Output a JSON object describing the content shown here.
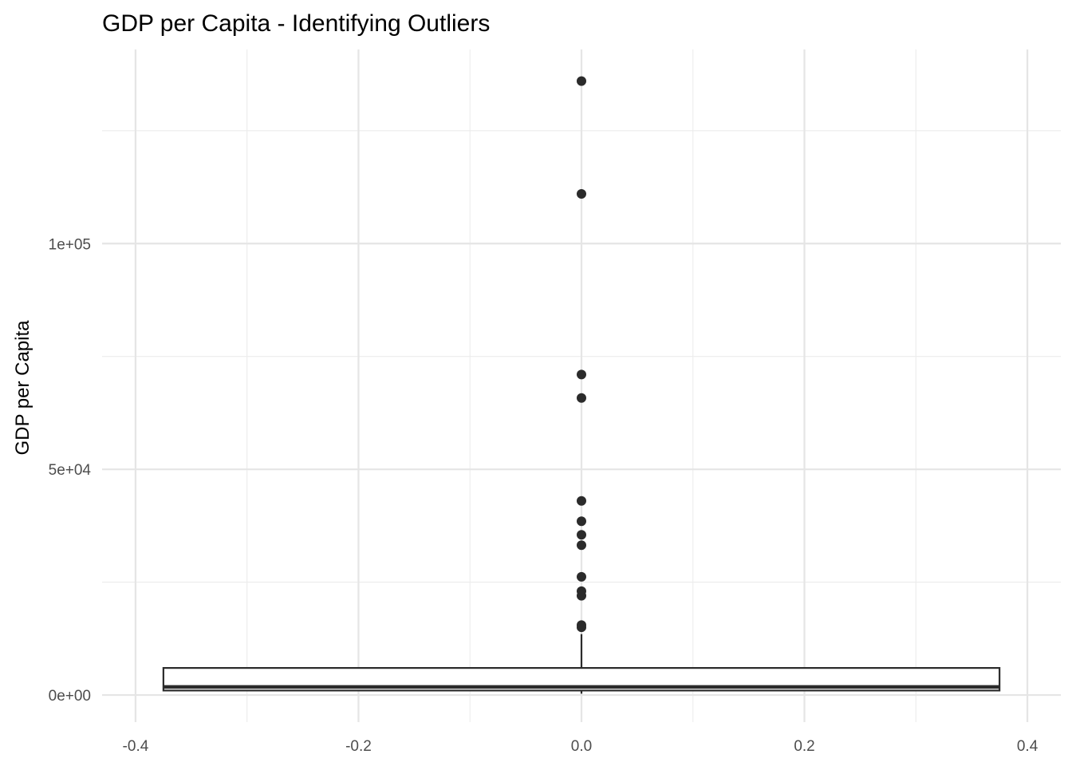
{
  "chart_data": {
    "type": "box",
    "title": "GDP per Capita - Identifying Outliers",
    "xlabel": "",
    "ylabel": "GDP per Capita",
    "x_tick_labels": [
      "-0.4",
      "-0.2",
      "0.0",
      "0.2",
      "0.4"
    ],
    "x_ticks": [
      -0.4,
      -0.2,
      0.0,
      0.2,
      0.4
    ],
    "y_tick_labels": [
      "0e+00",
      "5e+04",
      "1e+05"
    ],
    "y_ticks": [
      0,
      50000,
      100000
    ],
    "xlim": [
      -0.43,
      0.43
    ],
    "ylim": [
      -6000,
      143000
    ],
    "grid": true,
    "box": {
      "x": 0.0,
      "x_range": [
        -0.375,
        0.375
      ],
      "lower_whisker": 300,
      "q1": 1000,
      "median": 1800,
      "q3": 6000,
      "upper_whisker": 13500,
      "outliers": [
        136000,
        111000,
        71000,
        65800,
        43000,
        38500,
        35500,
        33200,
        26200,
        23000,
        22000,
        15500,
        15000
      ]
    }
  }
}
